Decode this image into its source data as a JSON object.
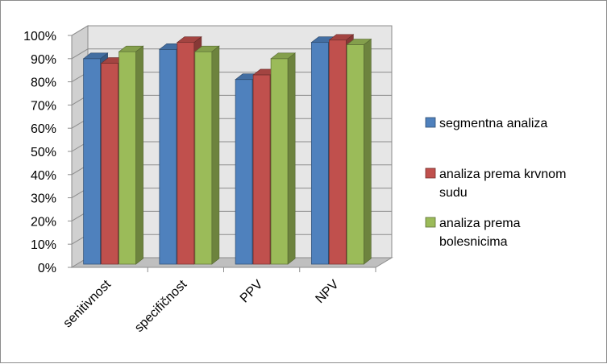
{
  "chart_data": {
    "type": "bar",
    "categories": [
      "senitivnost",
      "specifičnost",
      "PPV",
      "NPV"
    ],
    "series": [
      {
        "name": "segmentna analiza",
        "values": [
          90,
          94,
          81,
          97
        ],
        "color": "#4f81bd"
      },
      {
        "name": "analiza prema krvnom sudu",
        "values": [
          88,
          97,
          83,
          98
        ],
        "color": "#c0504d"
      },
      {
        "name": "analiza prema bolesnicima",
        "values": [
          93,
          93,
          90,
          96
        ],
        "color": "#9bbb59"
      }
    ],
    "ylim": [
      0,
      100
    ],
    "yticks": [
      "0%",
      "10%",
      "20%",
      "30%",
      "40%",
      "50%",
      "60%",
      "70%",
      "80%",
      "90%",
      "100%"
    ],
    "grid": true,
    "legend_position": "right",
    "style": "3d-clustered-column"
  }
}
